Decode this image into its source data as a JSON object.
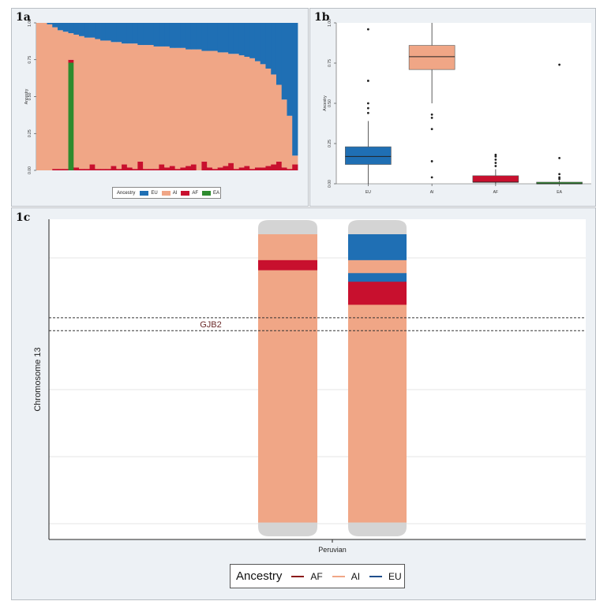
{
  "panels": {
    "a_label": "1a",
    "b_label": "1b",
    "c_label": "1c"
  },
  "colors": {
    "EU": "#1f6fb4",
    "AI": "#f0a686",
    "AF": "#c8102e",
    "EA": "#2e8b2e"
  },
  "chart_data": [
    {
      "type": "area",
      "panel": "1a",
      "description_of_series": "Stacked per-individual ancestry proportions, individuals sorted by AI",
      "ylabel": "Ancestry",
      "ylim": [
        0,
        1
      ],
      "yticks": [
        "0.00",
        "0.25",
        "0.50",
        "0.75",
        "1.00"
      ],
      "legend_title": "Ancestry",
      "legend": [
        "EU",
        "AI",
        "AF",
        "EA"
      ],
      "series": [
        {
          "name": "EU",
          "values": [
            0.0,
            0.0,
            0.01,
            0.03,
            0.05,
            0.06,
            0.07,
            0.08,
            0.09,
            0.1,
            0.1,
            0.11,
            0.12,
            0.12,
            0.13,
            0.13,
            0.14,
            0.14,
            0.14,
            0.15,
            0.15,
            0.15,
            0.16,
            0.16,
            0.16,
            0.17,
            0.17,
            0.17,
            0.18,
            0.18,
            0.18,
            0.19,
            0.19,
            0.19,
            0.2,
            0.2,
            0.21,
            0.21,
            0.22,
            0.23,
            0.24,
            0.26,
            0.28,
            0.31,
            0.35,
            0.42,
            0.52,
            0.63,
            0.9
          ]
        },
        {
          "name": "AI",
          "values": [
            1.0,
            1.0,
            0.99,
            0.96,
            0.94,
            0.93,
            0.18,
            0.9,
            0.9,
            0.89,
            0.86,
            0.88,
            0.87,
            0.87,
            0.84,
            0.86,
            0.82,
            0.84,
            0.85,
            0.79,
            0.84,
            0.84,
            0.83,
            0.8,
            0.82,
            0.8,
            0.82,
            0.81,
            0.79,
            0.78,
            0.82,
            0.75,
            0.79,
            0.8,
            0.78,
            0.77,
            0.74,
            0.78,
            0.76,
            0.74,
            0.75,
            0.72,
            0.7,
            0.66,
            0.61,
            0.52,
            0.46,
            0.36,
            0.06
          ]
        },
        {
          "name": "AF",
          "values": [
            0.0,
            0.0,
            0.0,
            0.01,
            0.01,
            0.01,
            0.02,
            0.02,
            0.01,
            0.01,
            0.04,
            0.01,
            0.01,
            0.01,
            0.03,
            0.01,
            0.04,
            0.02,
            0.01,
            0.06,
            0.01,
            0.01,
            0.01,
            0.04,
            0.02,
            0.03,
            0.01,
            0.02,
            0.03,
            0.04,
            0.0,
            0.06,
            0.02,
            0.01,
            0.02,
            0.03,
            0.05,
            0.01,
            0.02,
            0.03,
            0.01,
            0.02,
            0.02,
            0.03,
            0.04,
            0.06,
            0.02,
            0.01,
            0.04
          ]
        },
        {
          "name": "EA",
          "values": [
            0.0,
            0.0,
            0.0,
            0.0,
            0.0,
            0.0,
            0.73,
            0.0,
            0.0,
            0.0,
            0.0,
            0.0,
            0.0,
            0.0,
            0.0,
            0.0,
            0.0,
            0.0,
            0.0,
            0.0,
            0.0,
            0.0,
            0.0,
            0.0,
            0.0,
            0.0,
            0.0,
            0.0,
            0.0,
            0.0,
            0.0,
            0.0,
            0.0,
            0.0,
            0.0,
            0.0,
            0.0,
            0.0,
            0.0,
            0.0,
            0.0,
            0.0,
            0.0,
            0.0,
            0.0,
            0.0,
            0.0,
            0.0,
            0.0
          ]
        }
      ]
    },
    {
      "type": "box",
      "panel": "1b",
      "ylabel": "Ancestry",
      "ylim": [
        0,
        1
      ],
      "yticks": [
        "0.00",
        "0.25",
        "0.50",
        "0.75",
        "1.00"
      ],
      "categories": [
        "EU",
        "AI",
        "AF",
        "EA"
      ],
      "boxes": [
        {
          "name": "EU",
          "whisker_low": 0.0,
          "q1": 0.12,
          "median": 0.17,
          "q3": 0.23,
          "whisker_high": 0.39,
          "outliers": [
            0.44,
            0.47,
            0.5,
            0.64,
            0.96
          ]
        },
        {
          "name": "AI",
          "whisker_low": 0.5,
          "q1": 0.71,
          "median": 0.79,
          "q3": 0.86,
          "whisker_high": 1.0,
          "outliers": [
            0.04,
            0.14,
            0.34,
            0.41,
            0.43
          ]
        },
        {
          "name": "AF",
          "whisker_low": 0.0,
          "q1": 0.01,
          "median": 0.01,
          "q3": 0.05,
          "whisker_high": 0.09,
          "outliers": [
            0.11,
            0.13,
            0.15,
            0.17,
            0.18
          ]
        },
        {
          "name": "EA",
          "whisker_low": 0.0,
          "q1": 0.0,
          "median": 0.0,
          "q3": 0.01,
          "whisker_high": 0.02,
          "outliers": [
            0.03,
            0.04,
            0.06,
            0.16,
            0.74
          ]
        }
      ]
    },
    {
      "type": "heatmap",
      "panel": "1c",
      "ylabel": "Chromosome 13",
      "xlabel": "Peruvian",
      "annotation": "GJB2",
      "legend_title": "Ancestry",
      "legend": [
        "AF",
        "AI",
        "EU"
      ],
      "chromosomes": [
        {
          "name": "copy1",
          "segments": [
            {
              "ancestry": "AI",
              "start": 0.0,
              "end": 0.09
            },
            {
              "ancestry": "AF",
              "start": 0.09,
              "end": 0.125
            },
            {
              "ancestry": "AI",
              "start": 0.125,
              "end": 1.0
            }
          ]
        },
        {
          "name": "copy2",
          "segments": [
            {
              "ancestry": "EU",
              "start": 0.0,
              "end": 0.09
            },
            {
              "ancestry": "AI",
              "start": 0.09,
              "end": 0.135
            },
            {
              "ancestry": "EU",
              "start": 0.135,
              "end": 0.165
            },
            {
              "ancestry": "AF",
              "start": 0.165,
              "end": 0.245
            },
            {
              "ancestry": "AI",
              "start": 0.245,
              "end": 1.0
            }
          ]
        }
      ],
      "gene_band": {
        "start": 0.29,
        "end": 0.335
      }
    }
  ]
}
